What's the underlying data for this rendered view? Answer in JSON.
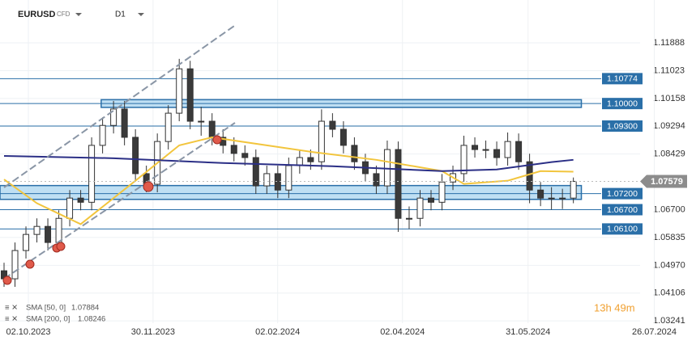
{
  "header": {
    "symbol": "EURUSD",
    "kind": "CFD",
    "timeframe": "D1",
    "timer": "13h 49m"
  },
  "chart_data": {
    "type": "candlestick",
    "x": [
      0,
      1,
      2,
      3,
      4,
      5,
      6,
      7,
      8,
      9,
      10,
      11,
      12,
      13,
      14,
      15,
      16,
      17,
      18,
      19,
      20,
      21,
      22,
      23,
      24,
      25,
      26,
      27,
      28,
      29,
      30,
      31,
      32,
      33,
      34,
      35,
      36,
      37,
      38,
      39,
      40,
      41,
      42,
      43,
      44,
      45,
      46,
      47,
      48,
      49,
      50,
      51,
      52
    ],
    "open": [
      1.048,
      1.0455,
      1.0543,
      1.0593,
      1.0618,
      1.0568,
      1.0643,
      1.0706,
      1.0693,
      1.087,
      1.0932,
      1.0983,
      1.0895,
      1.0782,
      1.0749,
      1.0882,
      1.097,
      1.1108,
      1.0945,
      1.0945,
      1.0895,
      1.087,
      1.0845,
      1.0832,
      1.0744,
      1.0782,
      1.0731,
      1.0807,
      1.0832,
      1.0819,
      1.0945,
      1.092,
      1.087,
      1.0819,
      1.0782,
      1.0744,
      1.0857,
      1.0643,
      1.0643,
      1.0706,
      1.0693,
      1.0756,
      1.0782,
      1.087,
      1.0857,
      1.0857,
      1.0832,
      1.0882,
      1.0819,
      1.0731,
      1.0706,
      1.0706,
      1.0706
    ],
    "high": [
      1.0505,
      1.0568,
      1.0618,
      1.0643,
      1.0643,
      1.0668,
      1.0731,
      1.0731,
      1.0895,
      1.0957,
      1.1008,
      1.1008,
      1.092,
      1.0807,
      1.0907,
      1.0995,
      1.1139,
      1.1133,
      1.099,
      1.097,
      1.092,
      1.0895,
      1.087,
      1.0857,
      1.0807,
      1.0807,
      1.0832,
      1.0857,
      1.0857,
      1.0982,
      1.097,
      1.0945,
      1.0895,
      1.0844,
      1.0807,
      1.0885,
      1.0882,
      1.068,
      1.0731,
      1.0731,
      1.0781,
      1.0807,
      1.09,
      1.0895,
      1.0885,
      1.0882,
      1.091,
      1.0907,
      1.0844,
      1.0756,
      1.074,
      1.0735,
      1.077
    ],
    "low": [
      1.043,
      1.043,
      1.0518,
      1.0568,
      1.0543,
      1.0543,
      1.0618,
      1.0668,
      1.0668,
      1.0845,
      1.0907,
      1.087,
      1.0757,
      1.0724,
      1.0724,
      1.0857,
      1.0945,
      1.092,
      1.09,
      1.087,
      1.0845,
      1.082,
      1.0807,
      1.0719,
      1.0719,
      1.0706,
      1.0706,
      1.0782,
      1.0794,
      1.0794,
      1.0895,
      1.0845,
      1.0794,
      1.0757,
      1.0719,
      1.0719,
      1.0601,
      1.061,
      1.0618,
      1.0668,
      1.0668,
      1.0731,
      1.0757,
      1.0832,
      1.083,
      1.0807,
      1.0807,
      1.0794,
      1.069,
      1.0681,
      1.067,
      1.0672,
      1.069
    ],
    "close": [
      1.0455,
      1.0543,
      1.0593,
      1.0618,
      1.0568,
      1.0643,
      1.0706,
      1.0693,
      1.087,
      1.0932,
      1.0983,
      1.0895,
      1.0782,
      1.0749,
      1.0882,
      1.097,
      1.1108,
      1.0945,
      1.0945,
      1.0895,
      1.087,
      1.0845,
      1.0832,
      1.0744,
      1.0782,
      1.0731,
      1.0807,
      1.0832,
      1.0819,
      1.0945,
      1.092,
      1.087,
      1.0819,
      1.0782,
      1.0744,
      1.0857,
      1.0643,
      1.0643,
      1.0706,
      1.0693,
      1.0756,
      1.0782,
      1.087,
      1.0857,
      1.0857,
      1.0832,
      1.0882,
      1.0819,
      1.0731,
      1.0706,
      1.0706,
      1.0706,
      1.0758
    ],
    "indicators": [
      {
        "name": "SMA [50, 0]",
        "last": 1.07884,
        "color": "#f2c53d",
        "x": [
          0,
          3,
          7,
          12,
          16,
          19,
          24,
          28,
          34,
          40,
          42,
          46,
          49,
          52
        ],
        "values": [
          1.0764,
          1.069,
          1.0625,
          1.076,
          1.087,
          1.0895,
          1.087,
          1.085,
          1.0825,
          1.079,
          1.075,
          1.076,
          1.079,
          1.0788
        ]
      },
      {
        "name": "SMA [200, 0]",
        "last": 1.08246,
        "color": "#2b2f86",
        "x": [
          0,
          10,
          20,
          30,
          40,
          45,
          50,
          52
        ],
        "values": [
          1.0837,
          1.083,
          1.0815,
          1.0805,
          1.079,
          1.0795,
          1.0818,
          1.0825
        ]
      }
    ],
    "levels": [
      1.10774,
      {
        "value": 1.1,
        "label": "1.10000"
      },
      {
        "value": 1.093,
        "label": "1.09300"
      },
      {
        "value": 1.072,
        "label": "1.07200"
      },
      {
        "value": 1.067,
        "label": "1.06700"
      },
      {
        "value": 1.061,
        "label": "1.06100"
      }
    ],
    "zones": [
      {
        "low": 1.0988,
        "high": 1.1012,
        "x": [
          8.87,
          52.73
        ]
      },
      {
        "low": 1.0702,
        "high": 1.0745,
        "x": [
          -0.37,
          52.73
        ]
      }
    ],
    "last_price": 1.07579,
    "level_color": "#2a6fa8",
    "zone_color": "#a9d4ef",
    "grid": true,
    "xlim": [
      -0.37,
      63.2
    ],
    "ylim": [
      1.0317,
      1.1322
    ],
    "yticks": [
      1.11888,
      1.11023,
      1.10158,
      1.09294,
      1.08429,
      {
        "value": 1.067,
        "label": "1.06700"
      },
      1.05835,
      {
        "value": 1.0497,
        "label": "1.04970"
      },
      1.04106,
      1.03241
    ],
    "xticks": [
      {
        "value": 2.22,
        "label": "02.10.2023"
      },
      {
        "value": 13.61,
        "label": "30.11.2023"
      },
      {
        "value": 24.99,
        "label": "02.02.2024"
      },
      {
        "value": 36.39,
        "label": "02.04.2024"
      },
      {
        "value": 47.86,
        "label": "31.05.2024"
      },
      {
        "value": 59.39,
        "label": "26.07.2024"
      }
    ]
  }
}
